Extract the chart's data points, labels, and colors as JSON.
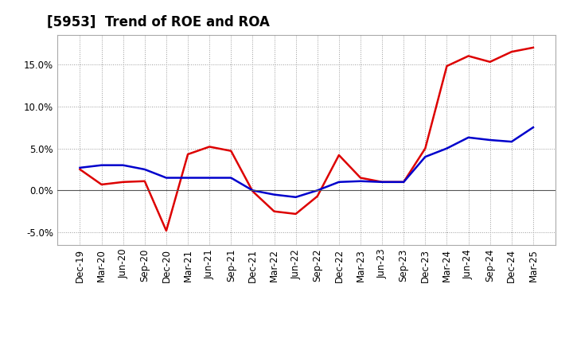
{
  "title": "[5953]  Trend of ROE and ROA",
  "x_labels": [
    "Dec-19",
    "Mar-20",
    "Jun-20",
    "Sep-20",
    "Dec-20",
    "Mar-21",
    "Jun-21",
    "Sep-21",
    "Dec-21",
    "Mar-22",
    "Jun-22",
    "Sep-22",
    "Dec-22",
    "Mar-23",
    "Jun-23",
    "Sep-23",
    "Dec-23",
    "Mar-24",
    "Jun-24",
    "Sep-24",
    "Dec-24",
    "Mar-25"
  ],
  "roe": [
    2.5,
    0.7,
    1.0,
    1.1,
    -4.8,
    4.3,
    5.2,
    4.7,
    -0.1,
    -2.5,
    -2.8,
    -0.7,
    4.2,
    1.5,
    1.0,
    1.0,
    5.0,
    14.8,
    16.0,
    15.3,
    16.5,
    17.0
  ],
  "roa": [
    2.7,
    3.0,
    3.0,
    2.5,
    1.5,
    1.5,
    1.5,
    1.5,
    0.0,
    -0.5,
    -0.8,
    0.0,
    1.0,
    1.1,
    1.0,
    1.0,
    4.0,
    5.0,
    6.3,
    6.0,
    5.8,
    7.5
  ],
  "roe_color": "#dd0000",
  "roa_color": "#0000cc",
  "ylim": [
    -6.5,
    18.5
  ],
  "yticks": [
    -5.0,
    0.0,
    5.0,
    10.0,
    15.0
  ],
  "bg_color": "#ffffff",
  "plot_bg_color": "#ffffff",
  "grid_color": "#999999",
  "title_fontsize": 12,
  "axis_fontsize": 8.5,
  "legend_fontsize": 10
}
